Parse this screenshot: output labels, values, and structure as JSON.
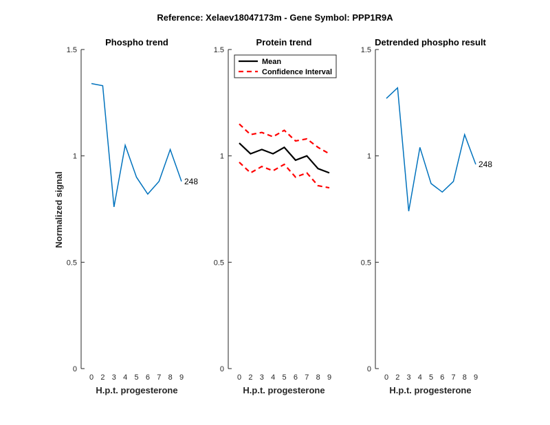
{
  "figure": {
    "suptitle": "Reference:  Xelaev18047173m - Gene Symbol:  PPP1R9A"
  },
  "chart_data": [
    {
      "type": "line",
      "title": "Phospho trend",
      "xlabel": "H.p.t. progesterone",
      "ylabel": "Normalized signal",
      "x_ticks": [
        "0",
        "2",
        "3",
        "4",
        "5",
        "6",
        "7",
        "8",
        "9"
      ],
      "y_ticks": [
        "0",
        "0.5",
        "1",
        "1.5"
      ],
      "ylim": [
        0,
        1.5
      ],
      "series": [
        {
          "color": "#0072BD",
          "style": "solid",
          "values": [
            1.34,
            1.33,
            0.76,
            1.05,
            0.9,
            0.82,
            0.88,
            1.03,
            0.88
          ]
        }
      ],
      "annotation": {
        "text": "248",
        "at_index": 8,
        "y": 0.88
      }
    },
    {
      "type": "line",
      "title": "Protein trend",
      "xlabel": "H.p.t. progesterone",
      "ylabel": "",
      "x_ticks": [
        "0",
        "2",
        "3",
        "4",
        "5",
        "6",
        "7",
        "8",
        "9"
      ],
      "y_ticks": [
        "0",
        "0.5",
        "1",
        "1.5"
      ],
      "ylim": [
        0,
        1.5
      ],
      "legend": {
        "placement": "top-left",
        "entries": [
          "Mean",
          "Confidence Interval"
        ]
      },
      "series": [
        {
          "name": "Mean",
          "color": "#000000",
          "style": "solid",
          "values": [
            1.06,
            1.01,
            1.03,
            1.01,
            1.04,
            0.98,
            1.0,
            0.94,
            0.92
          ]
        },
        {
          "name": "Confidence Interval",
          "color": "#FF0000",
          "style": "dashed",
          "values": [
            1.15,
            1.1,
            1.11,
            1.09,
            1.12,
            1.07,
            1.08,
            1.04,
            1.01
          ]
        },
        {
          "color": "#FF0000",
          "style": "dashed",
          "values": [
            0.97,
            0.92,
            0.95,
            0.93,
            0.96,
            0.9,
            0.92,
            0.86,
            0.85
          ]
        }
      ]
    },
    {
      "type": "line",
      "title": "Detrended phospho result",
      "xlabel": "H.p.t. progesterone",
      "ylabel": "",
      "x_ticks": [
        "0",
        "2",
        "3",
        "4",
        "5",
        "6",
        "7",
        "8",
        "9"
      ],
      "y_ticks": [
        "0",
        "0.5",
        "1",
        "1.5"
      ],
      "ylim": [
        0,
        1.5
      ],
      "series": [
        {
          "color": "#0072BD",
          "style": "solid",
          "values": [
            1.27,
            1.32,
            0.74,
            1.04,
            0.87,
            0.83,
            0.88,
            1.1,
            0.96
          ]
        }
      ],
      "annotation": {
        "text": "248",
        "at_index": 8,
        "y": 0.96
      }
    }
  ]
}
